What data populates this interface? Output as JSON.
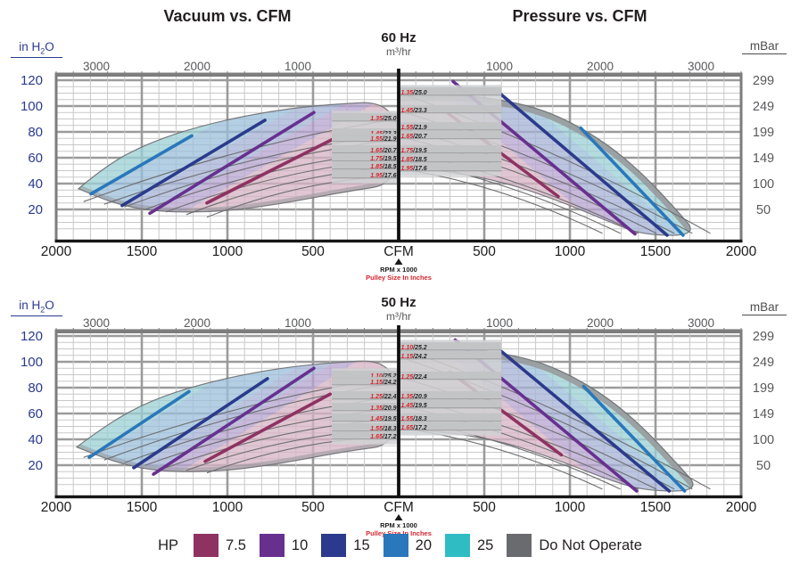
{
  "titles": {
    "left": "Vacuum vs. CFM",
    "right": "Pressure vs. CFM"
  },
  "headers": {
    "chart1": {
      "freq": "60 Hz",
      "unit": "m³/hr"
    },
    "chart2": {
      "freq": "50 Hz",
      "unit": "m³/hr"
    },
    "left_axis": {
      "pre": "in H",
      "sub": "2",
      "post": "O"
    },
    "right_axis": "mBar"
  },
  "legend": {
    "hp_label": "HP",
    "items": [
      {
        "label": "7.5",
        "color": "#8e3262"
      },
      {
        "label": "10",
        "color": "#67308f"
      },
      {
        "label": "15",
        "color": "#2b3a8c"
      },
      {
        "label": "20",
        "color": "#2a77bb"
      },
      {
        "label": "25",
        "color": "#2fbdc3"
      }
    ],
    "do_not_operate": {
      "label": "Do Not Operate",
      "color": "#6a6b6e"
    }
  },
  "colors": {
    "axis_blue": "#2b3a8f",
    "axis_gray": "#58595b",
    "grid_minor": "#c9c9c9",
    "grid_major": "#9b9b9b",
    "border_gray": "#7d7d7d",
    "fan": "#6d6e71",
    "label_red": "#d6252c",
    "label_black": "#231f20",
    "band_fills": {
      "7.5": "#e0b0c6",
      "10": "#b49bd6",
      "15": "#9caede",
      "20": "#8fc1e6",
      "25": "#8fd8de"
    }
  },
  "axis": {
    "y_left_ticks": [
      120,
      100,
      80,
      60,
      40,
      20
    ],
    "y_right_ticks": [
      299,
      249,
      199,
      149,
      100,
      50
    ],
    "x_bottom_ticks": [
      2000,
      1500,
      1000,
      500
    ],
    "x_bottom_center": "CFM",
    "x_top_ticks": [
      3000,
      2000,
      1000
    ],
    "x_sub1": "RPM x 1000",
    "x_sub2": "Pulley Size In Inches"
  },
  "chart_data": [
    {
      "type": "area",
      "frequency": "60 Hz",
      "x_units": [
        "CFM",
        "m³/hr"
      ],
      "y_units": [
        "in H2O",
        "mBar"
      ],
      "x_range_each_side": [
        0,
        2000
      ],
      "y_range": [
        0,
        128
      ],
      "center_labels_vacuum": [
        {
          "pulley": "1.35",
          "rpm": "25.0",
          "y": 90.3
        },
        {
          "pulley": "1.45",
          "rpm": "23.3",
          "y": 78.6
        },
        {
          "pulley": "1.55",
          "rpm": "21.9",
          "y": 74.5
        },
        {
          "pulley": "1.65",
          "rpm": "20.7",
          "y": 65.5
        },
        {
          "pulley": "1.75",
          "rpm": "19.5",
          "y": 59.3
        },
        {
          "pulley": "1.85",
          "rpm": "18.5",
          "y": 53.1
        },
        {
          "pulley": "1.95",
          "rpm": "17.6",
          "y": 46.2
        }
      ],
      "center_labels_pressure": [
        {
          "pulley": "1.35",
          "rpm": "25.0",
          "y": 110.3
        },
        {
          "pulley": "1.45",
          "rpm": "23.3",
          "y": 96.6
        },
        {
          "pulley": "1.55",
          "rpm": "21.9",
          "y": 83.4
        },
        {
          "pulley": "1.65",
          "rpm": "20.7",
          "y": 76.6
        },
        {
          "pulley": "1.75",
          "rpm": "19.5",
          "y": 65.5
        },
        {
          "pulley": "1.85",
          "rpm": "18.5",
          "y": 58.6
        },
        {
          "pulley": "1.95",
          "rpm": "17.6",
          "y": 51.7
        }
      ],
      "hp_lines_vacuum": [
        {
          "hp": "20",
          "pts": [
            [
              -1797,
              32
            ],
            [
              -1208,
              77
            ]
          ]
        },
        {
          "hp": "15",
          "pts": [
            [
              -1615,
              23
            ],
            [
              -781,
              89
            ]
          ]
        },
        {
          "hp": "10",
          "pts": [
            [
              -1453,
              17
            ],
            [
              -495,
              95
            ]
          ]
        },
        {
          "hp": "7.5",
          "pts": [
            [
              -1120,
              25
            ],
            [
              -375,
              75
            ]
          ]
        }
      ],
      "hp_lines_pressure": [
        {
          "hp": "7.5",
          "pts": [
            [
              292,
              94
            ],
            [
              932,
              30
            ]
          ]
        },
        {
          "hp": "10",
          "pts": [
            [
              318,
              119
            ],
            [
              1380,
              1
            ]
          ]
        },
        {
          "hp": "15",
          "pts": [
            [
              589,
              110
            ],
            [
              1568,
              0
            ]
          ]
        },
        {
          "hp": "20",
          "pts": [
            [
              1063,
              83
            ],
            [
              1661,
              0
            ]
          ]
        }
      ],
      "envelope_vacuum": {
        "top": [
          [
            -1870,
            36
          ],
          [
            -1700,
            55
          ],
          [
            -1450,
            72
          ],
          [
            -1150,
            85
          ],
          [
            -800,
            95
          ],
          [
            -450,
            101
          ],
          [
            0,
            104
          ]
        ],
        "bottom": [
          [
            0,
            40
          ],
          [
            -300,
            34
          ],
          [
            -700,
            24
          ],
          [
            -1050,
            18
          ],
          [
            -1400,
            18
          ],
          [
            -1650,
            24
          ],
          [
            -1870,
            36
          ]
        ]
      },
      "envelope_pressure": {
        "top": [
          [
            0,
            108
          ],
          [
            300,
            109
          ],
          [
            550,
            106
          ],
          [
            800,
            99
          ],
          [
            1000,
            88
          ],
          [
            1225,
            70
          ],
          [
            1430,
            47
          ],
          [
            1620,
            20
          ],
          [
            1750,
            0
          ]
        ],
        "bottom": [
          [
            0,
            52
          ],
          [
            270,
            50
          ],
          [
            620,
            41
          ],
          [
            930,
            27
          ],
          [
            1220,
            11
          ],
          [
            1430,
            0
          ]
        ]
      }
    },
    {
      "type": "area",
      "frequency": "50 Hz",
      "x_units": [
        "CFM",
        "m³/hr"
      ],
      "y_units": [
        "in H2O",
        "mBar"
      ],
      "x_range_each_side": [
        0,
        2000
      ],
      "y_range": [
        0,
        128
      ],
      "center_labels_vacuum": [
        {
          "pulley": "1.10",
          "rpm": "25.2",
          "y": 89.0
        },
        {
          "pulley": "1.15",
          "rpm": "24.2",
          "y": 84.1
        },
        {
          "pulley": "1.25",
          "rpm": "22.4",
          "y": 73.1
        },
        {
          "pulley": "1.35",
          "rpm": "20.9",
          "y": 64.1
        },
        {
          "pulley": "1.45",
          "rpm": "19.5",
          "y": 55.9
        },
        {
          "pulley": "1.55",
          "rpm": "18.3",
          "y": 48.3
        },
        {
          "pulley": "1.65",
          "rpm": "17.2",
          "y": 42.1
        }
      ],
      "center_labels_pressure": [
        {
          "pulley": "1.10",
          "rpm": "25.2",
          "y": 111.0
        },
        {
          "pulley": "1.15",
          "rpm": "24.2",
          "y": 104.1
        },
        {
          "pulley": "1.25",
          "rpm": "22.4",
          "y": 88.3
        },
        {
          "pulley": "1.35",
          "rpm": "20.9",
          "y": 73.1
        },
        {
          "pulley": "1.45",
          "rpm": "19.5",
          "y": 66.2
        },
        {
          "pulley": "1.55",
          "rpm": "18.3",
          "y": 55.9
        },
        {
          "pulley": "1.65",
          "rpm": "17.2",
          "y": 49.0
        }
      ],
      "hp_lines_vacuum": [
        {
          "hp": "20",
          "pts": [
            [
              -1807,
              26
            ],
            [
              -1224,
              77
            ]
          ]
        },
        {
          "hp": "15",
          "pts": [
            [
              -1547,
              18
            ],
            [
              -766,
              87
            ]
          ]
        },
        {
          "hp": "10",
          "pts": [
            [
              -1432,
              13
            ],
            [
              -495,
              95
            ]
          ]
        },
        {
          "hp": "7.5",
          "pts": [
            [
              -1130,
              23
            ],
            [
              -400,
              75
            ]
          ]
        }
      ],
      "hp_lines_pressure": [
        {
          "hp": "7.5",
          "pts": [
            [
              300,
              92
            ],
            [
              950,
              28
            ]
          ]
        },
        {
          "hp": "10",
          "pts": [
            [
              330,
              117
            ],
            [
              1390,
              0
            ]
          ]
        },
        {
          "hp": "15",
          "pts": [
            [
              600,
              108
            ],
            [
              1580,
              0
            ]
          ]
        },
        {
          "hp": "20",
          "pts": [
            [
              1080,
              81
            ],
            [
              1670,
              0
            ]
          ]
        }
      ],
      "envelope_vacuum": {
        "top": [
          [
            -1880,
            34
          ],
          [
            -1700,
            52
          ],
          [
            -1450,
            70
          ],
          [
            -1150,
            83
          ],
          [
            -800,
            93
          ],
          [
            -450,
            99
          ],
          [
            0,
            102
          ]
        ],
        "bottom": [
          [
            0,
            36
          ],
          [
            -300,
            31
          ],
          [
            -700,
            21
          ],
          [
            -1050,
            15
          ],
          [
            -1400,
            15
          ],
          [
            -1650,
            22
          ],
          [
            -1880,
            34
          ]
        ]
      },
      "envelope_pressure": {
        "top": [
          [
            0,
            110
          ],
          [
            300,
            111
          ],
          [
            550,
            108
          ],
          [
            800,
            101
          ],
          [
            1000,
            90
          ],
          [
            1225,
            72
          ],
          [
            1430,
            49
          ],
          [
            1620,
            22
          ],
          [
            1770,
            0
          ]
        ],
        "bottom": [
          [
            0,
            48
          ],
          [
            270,
            46
          ],
          [
            620,
            38
          ],
          [
            930,
            24
          ],
          [
            1220,
            9
          ],
          [
            1440,
            0
          ]
        ]
      }
    }
  ]
}
